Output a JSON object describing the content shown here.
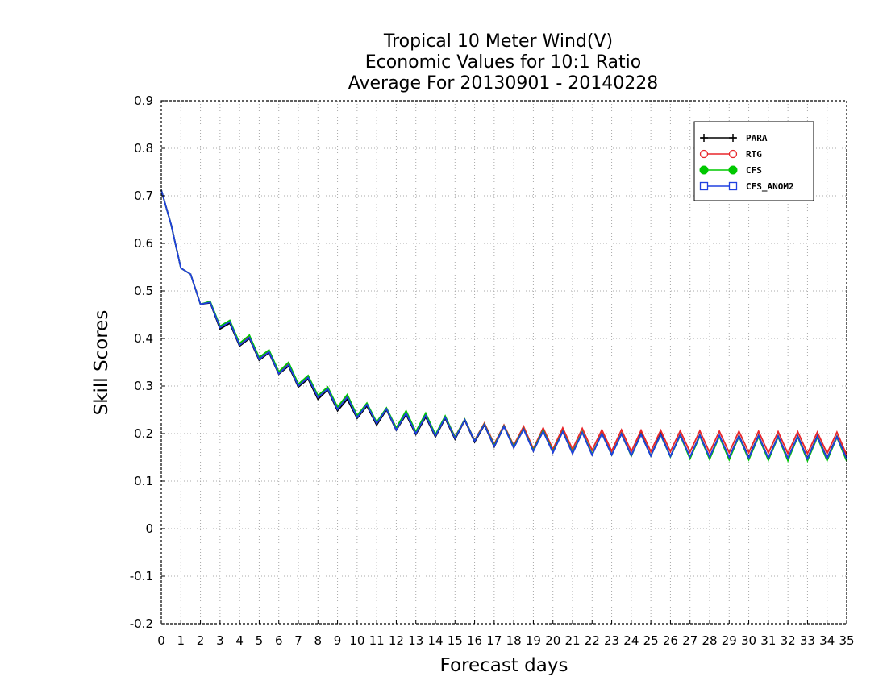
{
  "chart_data": {
    "type": "line",
    "title_lines": [
      "Tropical 10 Meter Wind(V)",
      "Economic Values for 10:1 Ratio",
      "Average For 20130901 - 20140228"
    ],
    "xlabel": "Forecast days",
    "ylabel": "Skill Scores",
    "xlim": [
      0,
      35
    ],
    "ylim": [
      -0.2,
      0.9
    ],
    "x_ticks": [
      0,
      1,
      2,
      3,
      4,
      5,
      6,
      7,
      8,
      9,
      10,
      11,
      12,
      13,
      14,
      15,
      16,
      17,
      18,
      19,
      20,
      21,
      22,
      23,
      24,
      25,
      26,
      27,
      28,
      29,
      30,
      31,
      32,
      33,
      34,
      35
    ],
    "y_ticks": [
      -0.2,
      -0.1,
      0,
      0.1,
      0.2,
      0.3,
      0.4,
      0.5,
      0.6,
      0.7,
      0.8,
      0.9
    ],
    "grid": true,
    "legend_position": "top-right",
    "x": [
      0,
      0.5,
      1,
      1.5,
      2,
      2.5,
      3,
      3.5,
      4,
      4.5,
      5,
      5.5,
      6,
      6.5,
      7,
      7.5,
      8,
      8.5,
      9,
      9.5,
      10,
      10.5,
      11,
      11.5,
      12,
      12.5,
      13,
      13.5,
      14,
      14.5,
      15,
      15.5,
      16,
      16.5,
      17,
      17.5,
      18,
      18.5,
      19,
      19.5,
      20,
      20.5,
      21,
      21.5,
      22,
      22.5,
      23,
      23.5,
      24,
      24.5,
      25,
      25.5,
      26,
      26.5,
      27,
      27.5,
      28,
      28.5,
      29,
      29.5,
      30,
      30.5,
      31,
      31.5,
      32,
      32.5,
      33,
      33.5,
      34,
      34.5,
      35
    ],
    "series": [
      {
        "name": "PARA",
        "color": "#000000",
        "marker": "plus",
        "values": [
          0.712,
          0.64,
          0.548,
          0.535,
          0.472,
          0.475,
          0.42,
          0.432,
          0.384,
          0.4,
          0.354,
          0.37,
          0.325,
          0.342,
          0.298,
          0.315,
          0.272,
          0.292,
          0.248,
          0.272,
          0.232,
          0.258,
          0.218,
          0.25,
          0.207,
          0.24,
          0.198,
          0.235,
          0.193,
          0.232,
          0.188,
          0.228,
          0.182,
          0.218,
          0.172,
          0.215,
          0.17,
          0.21,
          0.163,
          0.205,
          0.16,
          0.205,
          0.158,
          0.203,
          0.155,
          0.201,
          0.155,
          0.2,
          0.153,
          0.2,
          0.153,
          0.2,
          0.152,
          0.198,
          0.15,
          0.197,
          0.15,
          0.196,
          0.15,
          0.196,
          0.15,
          0.196,
          0.148,
          0.195,
          0.148,
          0.195,
          0.148,
          0.195,
          0.148,
          0.194,
          0.148
        ]
      },
      {
        "name": "RTG",
        "color": "#e8262b",
        "marker": "circle",
        "values": [
          0.712,
          0.64,
          0.548,
          0.535,
          0.472,
          0.477,
          0.425,
          0.437,
          0.388,
          0.405,
          0.358,
          0.374,
          0.328,
          0.347,
          0.302,
          0.32,
          0.276,
          0.295,
          0.252,
          0.278,
          0.236,
          0.262,
          0.222,
          0.253,
          0.212,
          0.245,
          0.202,
          0.24,
          0.197,
          0.236,
          0.193,
          0.23,
          0.186,
          0.222,
          0.178,
          0.218,
          0.175,
          0.215,
          0.168,
          0.212,
          0.167,
          0.212,
          0.167,
          0.211,
          0.165,
          0.208,
          0.163,
          0.208,
          0.162,
          0.207,
          0.162,
          0.207,
          0.162,
          0.206,
          0.161,
          0.206,
          0.16,
          0.205,
          0.16,
          0.205,
          0.16,
          0.205,
          0.159,
          0.204,
          0.158,
          0.204,
          0.158,
          0.203,
          0.158,
          0.203,
          0.155
        ]
      },
      {
        "name": "CFS",
        "color": "#00c800",
        "marker": "filled-circle",
        "values": [
          0.712,
          0.64,
          0.548,
          0.535,
          0.472,
          0.478,
          0.426,
          0.438,
          0.39,
          0.407,
          0.36,
          0.376,
          0.33,
          0.35,
          0.304,
          0.322,
          0.28,
          0.298,
          0.256,
          0.282,
          0.238,
          0.264,
          0.224,
          0.254,
          0.212,
          0.248,
          0.204,
          0.243,
          0.198,
          0.237,
          0.192,
          0.23,
          0.185,
          0.22,
          0.175,
          0.216,
          0.172,
          0.21,
          0.165,
          0.207,
          0.162,
          0.205,
          0.16,
          0.203,
          0.157,
          0.2,
          0.155,
          0.199,
          0.153,
          0.198,
          0.153,
          0.197,
          0.151,
          0.196,
          0.147,
          0.195,
          0.146,
          0.194,
          0.145,
          0.194,
          0.145,
          0.193,
          0.144,
          0.193,
          0.143,
          0.193,
          0.143,
          0.192,
          0.143,
          0.192,
          0.142
        ]
      },
      {
        "name": "CFS_ANOM2",
        "color": "#2040e0",
        "marker": "square",
        "values": [
          0.712,
          0.64,
          0.548,
          0.535,
          0.472,
          0.476,
          0.423,
          0.435,
          0.386,
          0.402,
          0.356,
          0.372,
          0.326,
          0.345,
          0.3,
          0.318,
          0.276,
          0.294,
          0.251,
          0.277,
          0.234,
          0.261,
          0.221,
          0.252,
          0.208,
          0.243,
          0.2,
          0.238,
          0.195,
          0.234,
          0.19,
          0.229,
          0.184,
          0.219,
          0.173,
          0.215,
          0.17,
          0.209,
          0.163,
          0.205,
          0.16,
          0.204,
          0.158,
          0.202,
          0.155,
          0.2,
          0.155,
          0.199,
          0.154,
          0.198,
          0.153,
          0.198,
          0.152,
          0.197,
          0.151,
          0.196,
          0.15,
          0.196,
          0.15,
          0.195,
          0.149,
          0.195,
          0.148,
          0.194,
          0.148,
          0.194,
          0.147,
          0.194,
          0.147,
          0.193,
          0.147
        ]
      }
    ]
  }
}
